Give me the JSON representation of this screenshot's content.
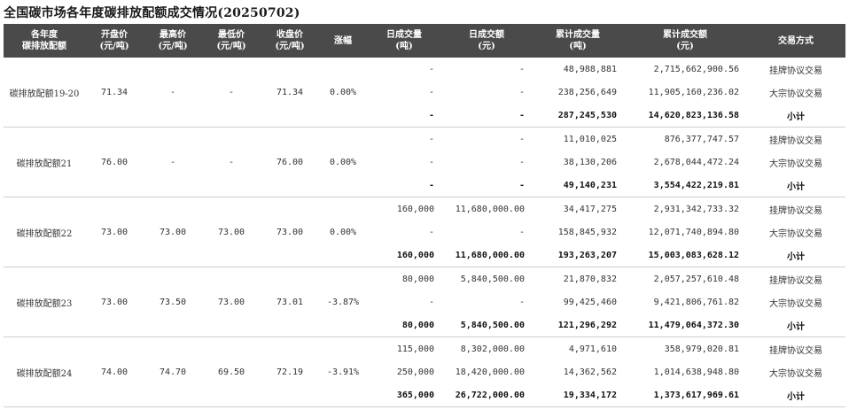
{
  "title": "全国碳市场各年度碳排放配额成交情况(20250702)",
  "headers": [
    {
      "l1": "各年度",
      "l2": "碳排放配额"
    },
    {
      "l1": "开盘价",
      "l2": "(元/吨)"
    },
    {
      "l1": "最高价",
      "l2": "(元/吨)"
    },
    {
      "l1": "最低价",
      "l2": "(元/吨)"
    },
    {
      "l1": "收盘价",
      "l2": "(元/吨)"
    },
    {
      "l1": "涨幅",
      "l2": ""
    },
    {
      "l1": "日成交量",
      "l2": "(吨)"
    },
    {
      "l1": "日成交额",
      "l2": "(元)"
    },
    {
      "l1": "累计成交量",
      "l2": "(吨)"
    },
    {
      "l1": "累计成交额",
      "l2": "(元)"
    },
    {
      "l1": "交易方式",
      "l2": ""
    }
  ],
  "groups": [
    {
      "name": "碳排放配额19-20",
      "open": "71.34",
      "high": "-",
      "low": "-",
      "close": "71.34",
      "change": "0.00%",
      "rows": [
        {
          "vol": "-",
          "amt": "-",
          "cum_vol": "48,988,881",
          "cum_amt": "2,715,662,900.56",
          "mode": "挂牌协议交易"
        },
        {
          "vol": "-",
          "amt": "-",
          "cum_vol": "238,256,649",
          "cum_amt": "11,905,160,236.02",
          "mode": "大宗协议交易"
        },
        {
          "vol": "-",
          "amt": "-",
          "cum_vol": "287,245,530",
          "cum_amt": "14,620,823,136.58",
          "mode": "小计"
        }
      ]
    },
    {
      "name": "碳排放配额21",
      "open": "76.00",
      "high": "-",
      "low": "-",
      "close": "76.00",
      "change": "0.00%",
      "rows": [
        {
          "vol": "-",
          "amt": "-",
          "cum_vol": "11,010,025",
          "cum_amt": "876,377,747.57",
          "mode": "挂牌协议交易"
        },
        {
          "vol": "-",
          "amt": "-",
          "cum_vol": "38,130,206",
          "cum_amt": "2,678,044,472.24",
          "mode": "大宗协议交易"
        },
        {
          "vol": "-",
          "amt": "-",
          "cum_vol": "49,140,231",
          "cum_amt": "3,554,422,219.81",
          "mode": "小计"
        }
      ]
    },
    {
      "name": "碳排放配额22",
      "open": "73.00",
      "high": "73.00",
      "low": "73.00",
      "close": "73.00",
      "change": "0.00%",
      "rows": [
        {
          "vol": "160,000",
          "amt": "11,680,000.00",
          "cum_vol": "34,417,275",
          "cum_amt": "2,931,342,733.32",
          "mode": "挂牌协议交易"
        },
        {
          "vol": "-",
          "amt": "-",
          "cum_vol": "158,845,932",
          "cum_amt": "12,071,740,894.80",
          "mode": "大宗协议交易"
        },
        {
          "vol": "160,000",
          "amt": "11,680,000.00",
          "cum_vol": "193,263,207",
          "cum_amt": "15,003,083,628.12",
          "mode": "小计"
        }
      ]
    },
    {
      "name": "碳排放配额23",
      "open": "73.00",
      "high": "73.50",
      "low": "73.00",
      "close": "73.01",
      "change": "-3.87%",
      "rows": [
        {
          "vol": "80,000",
          "amt": "5,840,500.00",
          "cum_vol": "21,870,832",
          "cum_amt": "2,057,257,610.48",
          "mode": "挂牌协议交易"
        },
        {
          "vol": "-",
          "amt": "-",
          "cum_vol": "99,425,460",
          "cum_amt": "9,421,806,761.82",
          "mode": "大宗协议交易"
        },
        {
          "vol": "80,000",
          "amt": "5,840,500.00",
          "cum_vol": "121,296,292",
          "cum_amt": "11,479,064,372.30",
          "mode": "小计"
        }
      ]
    },
    {
      "name": "碳排放配额24",
      "open": "74.00",
      "high": "74.70",
      "low": "69.50",
      "close": "72.19",
      "change": "-3.91%",
      "rows": [
        {
          "vol": "115,000",
          "amt": "8,302,000.00",
          "cum_vol": "4,971,610",
          "cum_amt": "358,979,020.81",
          "mode": "挂牌协议交易"
        },
        {
          "vol": "250,000",
          "amt": "18,420,000.00",
          "cum_vol": "14,362,562",
          "cum_amt": "1,014,638,948.80",
          "mode": "大宗协议交易"
        },
        {
          "vol": "365,000",
          "amt": "26,722,000.00",
          "cum_vol": "19,334,172",
          "cum_amt": "1,373,617,969.61",
          "mode": "小计"
        }
      ]
    }
  ]
}
